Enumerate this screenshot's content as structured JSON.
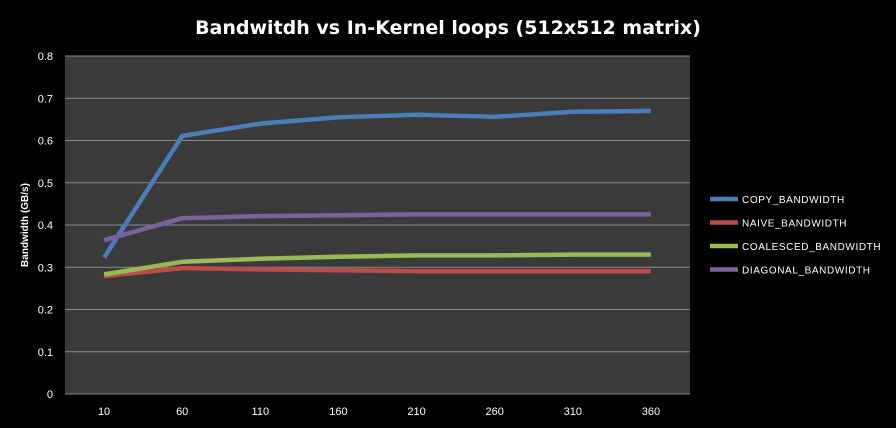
{
  "chart_data": {
    "type": "line",
    "title": "Bandwitdh vs In-Kernel loops (512x512 matrix)",
    "xlabel": "",
    "ylabel": "Bandwidth  (GB/s)",
    "categories": [
      "10",
      "60",
      "110",
      "160",
      "210",
      "260",
      "310",
      "360"
    ],
    "y_ticks": [
      "0",
      "0.1",
      "0.2",
      "0.3",
      "0.4",
      "0.5",
      "0.6",
      "0.7",
      "0.8"
    ],
    "ylim": [
      0,
      0.8
    ],
    "grid": "horizontal",
    "legend_position": "right",
    "plot_background": "#3a3a3a",
    "series": [
      {
        "name": "COPY_BANDWIDTH",
        "color": "#4a7ebb",
        "values": [
          0.323,
          0.611,
          0.64,
          0.655,
          0.661,
          0.656,
          0.668,
          0.67
        ]
      },
      {
        "name": "NAIVE_BANDWIDTH",
        "color": "#be4b48",
        "values": [
          0.279,
          0.298,
          0.295,
          0.293,
          0.291,
          0.291,
          0.291,
          0.291
        ]
      },
      {
        "name": "COALESCED_BANDWIDTH",
        "color": "#98b954",
        "values": [
          0.283,
          0.313,
          0.32,
          0.325,
          0.328,
          0.328,
          0.33,
          0.33
        ]
      },
      {
        "name": "DIAGONAL_BANDWIDTH",
        "color": "#7d60a0",
        "values": [
          0.364,
          0.416,
          0.421,
          0.423,
          0.425,
          0.425,
          0.425,
          0.425
        ]
      }
    ]
  }
}
